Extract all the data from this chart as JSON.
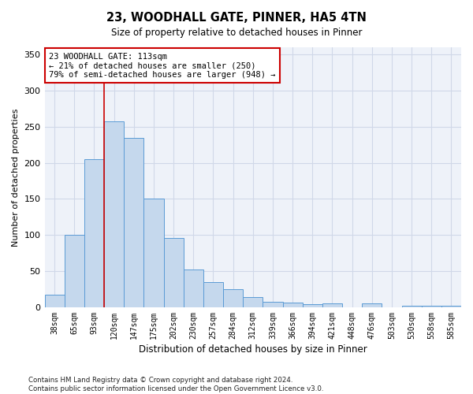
{
  "title": "23, WOODHALL GATE, PINNER, HA5 4TN",
  "subtitle": "Size of property relative to detached houses in Pinner",
  "xlabel": "Distribution of detached houses by size in Pinner",
  "ylabel": "Number of detached properties",
  "categories": [
    "38sqm",
    "65sqm",
    "93sqm",
    "120sqm",
    "147sqm",
    "175sqm",
    "202sqm",
    "230sqm",
    "257sqm",
    "284sqm",
    "312sqm",
    "339sqm",
    "366sqm",
    "394sqm",
    "421sqm",
    "448sqm",
    "476sqm",
    "503sqm",
    "530sqm",
    "558sqm",
    "585sqm"
  ],
  "values": [
    17,
    100,
    205,
    257,
    235,
    150,
    96,
    52,
    35,
    25,
    14,
    8,
    6,
    4,
    5,
    0,
    5,
    0,
    2,
    2,
    2
  ],
  "bar_color": "#c5d8ed",
  "bar_edge_color": "#5b9bd5",
  "grid_color": "#d0d8e8",
  "background_color": "#eef2f9",
  "vline_x_idx": 3,
  "vline_color": "#cc0000",
  "annotation_line1": "23 WOODHALL GATE: 113sqm",
  "annotation_line2": "← 21% of detached houses are smaller (250)",
  "annotation_line3": "79% of semi-detached houses are larger (948) →",
  "annotation_box_color": "#ffffff",
  "annotation_box_edge": "#cc0000",
  "ylim": [
    0,
    360
  ],
  "yticks": [
    0,
    50,
    100,
    150,
    200,
    250,
    300,
    350
  ],
  "footer_line1": "Contains HM Land Registry data © Crown copyright and database right 2024.",
  "footer_line2": "Contains public sector information licensed under the Open Government Licence v3.0."
}
